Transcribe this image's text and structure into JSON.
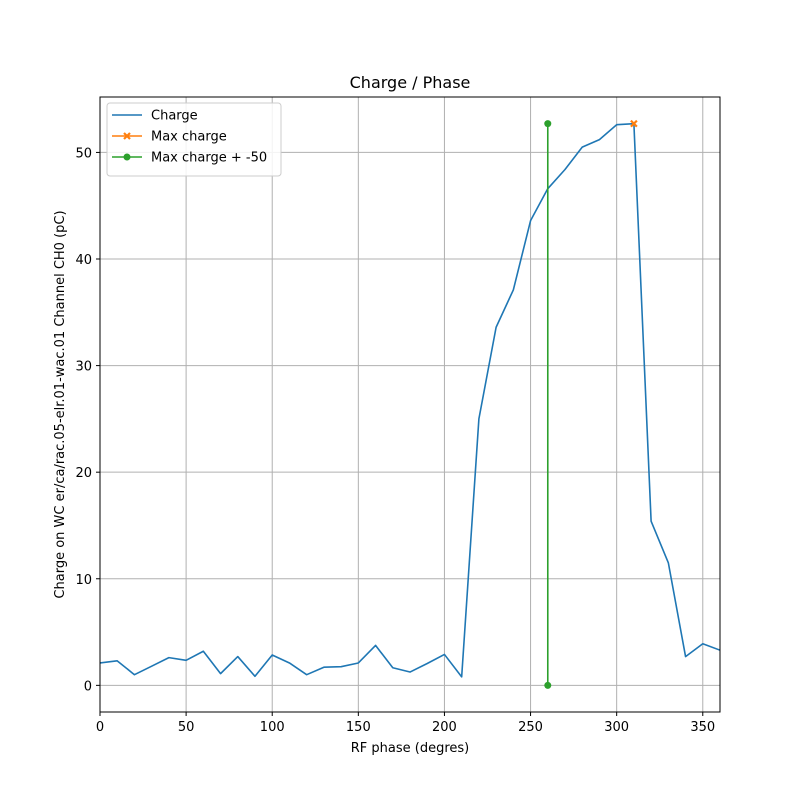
{
  "chart_data": {
    "type": "line",
    "title": "Charge / Phase",
    "xlabel": "RF phase (degres)",
    "ylabel": "Charge on WC er/ca/rac.05-elr.01-wac.01 Channel CH0 (pC)",
    "xlim": [
      0,
      360
    ],
    "ylim": [
      -2.5,
      55.2
    ],
    "xticks": [
      0,
      50,
      100,
      150,
      200,
      250,
      300,
      350
    ],
    "yticks": [
      0,
      10,
      20,
      30,
      40,
      50
    ],
    "grid": true,
    "legend_position": "top-left",
    "series": [
      {
        "name": "Charge",
        "color": "#1f77b4",
        "marker": "none",
        "x": [
          0,
          10,
          20,
          30,
          40,
          50,
          60,
          70,
          80,
          90,
          100,
          110,
          120,
          130,
          140,
          150,
          160,
          170,
          180,
          190,
          200,
          210,
          220,
          230,
          240,
          250,
          260,
          270,
          280,
          290,
          300,
          310,
          320,
          330,
          340,
          350,
          360
        ],
        "y": [
          2.1,
          2.3,
          1.0,
          1.8,
          2.6,
          2.35,
          3.2,
          1.1,
          2.7,
          0.85,
          2.85,
          2.1,
          1.0,
          1.7,
          1.75,
          2.1,
          3.75,
          1.65,
          1.25,
          2.05,
          2.9,
          0.8,
          25.0,
          33.6,
          37.1,
          43.6,
          46.6,
          48.4,
          50.5,
          51.2,
          52.6,
          52.7,
          15.4,
          11.5,
          2.7,
          3.9,
          3.3
        ]
      },
      {
        "name": "Max charge",
        "color": "#ff7f0e",
        "marker": "x",
        "x": [
          310
        ],
        "y": [
          52.7
        ]
      },
      {
        "name": "Max charge + -50",
        "color": "#2ca02c",
        "marker": "circle",
        "x": [
          260,
          260
        ],
        "y": [
          0,
          52.7
        ]
      }
    ]
  }
}
